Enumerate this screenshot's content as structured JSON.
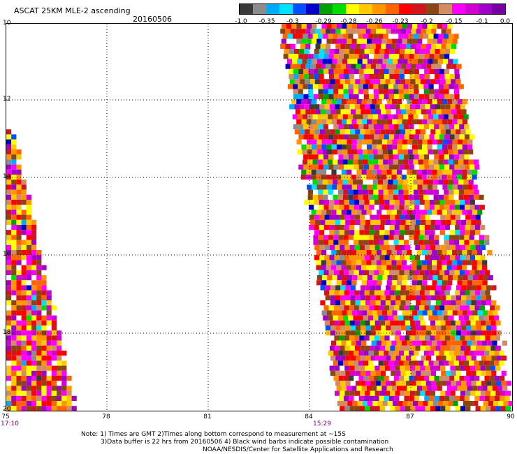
{
  "header": {
    "title": "ASCAT 25KM MLE-2 ascending",
    "date": "20160506"
  },
  "colorbar": {
    "colors": [
      "#3a3a3a",
      "#8c8c8c",
      "#00aaff",
      "#00e0ff",
      "#0050ff",
      "#0000c8",
      "#00a000",
      "#00dd00",
      "#ffff00",
      "#ffc800",
      "#ff9600",
      "#ff6400",
      "#ff0000",
      "#d2141e",
      "#8b4513",
      "#d28c64",
      "#ff00ff",
      "#d200d2",
      "#a000c8",
      "#7800a0"
    ],
    "labels": [
      "-1.0",
      "-0.35",
      "-0.3",
      "-0.29",
      "-0.28",
      "-0.26",
      "-0.23",
      "-0.2",
      "-0.15",
      "-0.1",
      "0.0"
    ]
  },
  "axes": {
    "x_ticks": [
      "75",
      "78",
      "81",
      "84",
      "87",
      "90"
    ],
    "y_ticks": [
      "10",
      "12",
      "14",
      "16",
      "18",
      "20"
    ],
    "time_labels": [
      "17:10",
      "15:29"
    ]
  },
  "notes": {
    "line1": "Note: 1) Times are GMT 2)Times along bottom correspond to measurement at ~15S",
    "line2": "3)Data buffer is 22 hrs from 20160506 4) Black wind barbs indicate possible contamination",
    "line3": "NOAA/NESDIS/Center for Satellite Applications and Research"
  }
}
